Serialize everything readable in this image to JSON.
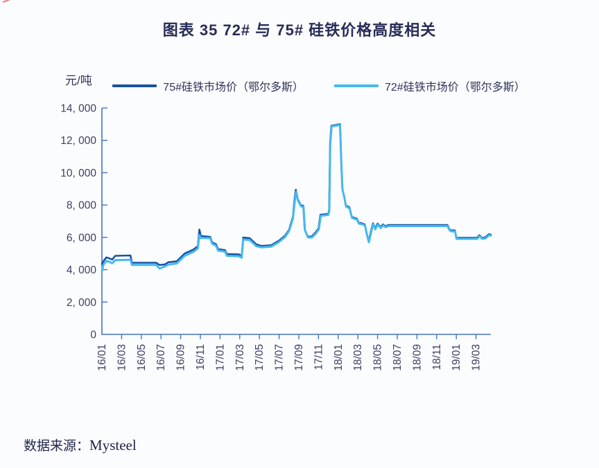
{
  "page": {
    "title": "图表 35  72# 与 75# 硅铁价格高度相关",
    "source_prefix": "数据来源：",
    "source_name": "Mysteel"
  },
  "chart_data": {
    "type": "line",
    "title": "图表 35  72# 与 75# 硅铁价格高度相关",
    "ylabel": "元/吨",
    "ylim": [
      0,
      14000
    ],
    "grid": false,
    "legend_position": "top",
    "axis_color": "#4472c4",
    "background_color": "#fbfcfe",
    "y_ticks": [
      0,
      2000,
      4000,
      6000,
      8000,
      10000,
      12000,
      14000
    ],
    "y_tick_labels": [
      "0",
      "2, 000",
      "4, 000",
      "6, 000",
      "8, 000",
      "10, 000",
      "12, 000",
      "14, 000"
    ],
    "x_tick_labels": [
      "16/01",
      "16/03",
      "16/05",
      "16/07",
      "16/09",
      "16/11",
      "17/01",
      "17/03",
      "17/05",
      "17/07",
      "17/09",
      "17/11",
      "18/01",
      "18/03",
      "18/05",
      "18/07",
      "18/09",
      "18/11",
      "19/01",
      "19/03"
    ],
    "x_unit": "months since 2016-01 (tick labels every 2 months)",
    "series": [
      {
        "name": "75#硅铁市场价（鄂尔多斯）",
        "color": "#1a52a2",
        "points": [
          [
            0,
            4350
          ],
          [
            0.15,
            4520
          ],
          [
            0.45,
            4760
          ],
          [
            0.75,
            4700
          ],
          [
            1.05,
            4630
          ],
          [
            1.35,
            4860
          ],
          [
            2.9,
            4880
          ],
          [
            3.05,
            4430
          ],
          [
            5.5,
            4430
          ],
          [
            5.85,
            4290
          ],
          [
            6.4,
            4330
          ],
          [
            6.75,
            4460
          ],
          [
            7.6,
            4520
          ],
          [
            8.4,
            5000
          ],
          [
            9.3,
            5250
          ],
          [
            9.75,
            5460
          ],
          [
            9.9,
            6480
          ],
          [
            10.05,
            6090
          ],
          [
            11.0,
            6030
          ],
          [
            11.2,
            5690
          ],
          [
            11.6,
            5570
          ],
          [
            11.8,
            5270
          ],
          [
            12.5,
            5210
          ],
          [
            12.7,
            4970
          ],
          [
            13.9,
            4950
          ],
          [
            14.2,
            4850
          ],
          [
            14.35,
            5990
          ],
          [
            15.0,
            5950
          ],
          [
            15.7,
            5560
          ],
          [
            16.2,
            5470
          ],
          [
            17.2,
            5510
          ],
          [
            18.0,
            5800
          ],
          [
            18.6,
            6100
          ],
          [
            19.0,
            6450
          ],
          [
            19.4,
            7260
          ],
          [
            19.55,
            8260
          ],
          [
            19.7,
            8950
          ],
          [
            19.9,
            8350
          ],
          [
            20.1,
            8120
          ],
          [
            20.2,
            7990
          ],
          [
            20.45,
            7960
          ],
          [
            20.6,
            6500
          ],
          [
            20.9,
            6060
          ],
          [
            21.3,
            6050
          ],
          [
            21.7,
            6300
          ],
          [
            22.0,
            6550
          ],
          [
            22.2,
            7400
          ],
          [
            23.0,
            7450
          ],
          [
            23.08,
            7700
          ],
          [
            23.18,
            11900
          ],
          [
            23.3,
            12900
          ],
          [
            24.2,
            13000
          ],
          [
            24.32,
            10500
          ],
          [
            24.42,
            9000
          ],
          [
            24.6,
            8560
          ],
          [
            24.78,
            7960
          ],
          [
            25.15,
            7860
          ],
          [
            25.38,
            7260
          ],
          [
            25.9,
            7160
          ],
          [
            26.1,
            6900
          ],
          [
            26.35,
            6880
          ],
          [
            26.7,
            6800
          ],
          [
            26.9,
            6220
          ],
          [
            27.1,
            5760
          ],
          [
            27.35,
            6450
          ],
          [
            27.55,
            6870
          ],
          [
            27.75,
            6560
          ],
          [
            28.0,
            6850
          ],
          [
            28.3,
            6640
          ],
          [
            28.55,
            6800
          ],
          [
            28.8,
            6690
          ],
          [
            29.1,
            6760
          ],
          [
            35.1,
            6760
          ],
          [
            35.3,
            6500
          ],
          [
            35.45,
            6430
          ],
          [
            35.85,
            6430
          ],
          [
            36.0,
            5970
          ],
          [
            38.1,
            5970
          ],
          [
            38.35,
            6140
          ],
          [
            38.6,
            5970
          ],
          [
            38.95,
            6000
          ],
          [
            39.3,
            6190
          ],
          [
            39.5,
            6170
          ]
        ]
      },
      {
        "name": "72#硅铁市场价（鄂尔多斯）",
        "color": "#45b9ee",
        "points": [
          [
            0,
            3900
          ],
          [
            0.15,
            4310
          ],
          [
            0.45,
            4540
          ],
          [
            0.75,
            4490
          ],
          [
            1.05,
            4400
          ],
          [
            1.35,
            4590
          ],
          [
            2.9,
            4610
          ],
          [
            3.05,
            4300
          ],
          [
            5.5,
            4300
          ],
          [
            5.85,
            4070
          ],
          [
            6.4,
            4200
          ],
          [
            6.75,
            4310
          ],
          [
            7.6,
            4390
          ],
          [
            8.4,
            4860
          ],
          [
            9.3,
            5110
          ],
          [
            9.75,
            5320
          ],
          [
            9.9,
            6140
          ],
          [
            10.05,
            5970
          ],
          [
            11.0,
            5950
          ],
          [
            11.2,
            5610
          ],
          [
            11.6,
            5480
          ],
          [
            11.8,
            5180
          ],
          [
            12.5,
            5120
          ],
          [
            12.7,
            4860
          ],
          [
            13.9,
            4840
          ],
          [
            14.2,
            4740
          ],
          [
            14.35,
            5870
          ],
          [
            15.0,
            5840
          ],
          [
            15.7,
            5450
          ],
          [
            16.2,
            5380
          ],
          [
            17.2,
            5430
          ],
          [
            18.0,
            5720
          ],
          [
            18.6,
            6020
          ],
          [
            19.0,
            6380
          ],
          [
            19.4,
            7160
          ],
          [
            19.57,
            8140
          ],
          [
            19.73,
            8820
          ],
          [
            19.93,
            8260
          ],
          [
            20.13,
            8040
          ],
          [
            20.23,
            7910
          ],
          [
            20.48,
            7880
          ],
          [
            20.63,
            6440
          ],
          [
            20.93,
            6000
          ],
          [
            21.33,
            5990
          ],
          [
            21.73,
            6240
          ],
          [
            22.03,
            6490
          ],
          [
            22.23,
            7330
          ],
          [
            23.0,
            7390
          ],
          [
            23.1,
            7630
          ],
          [
            23.2,
            11800
          ],
          [
            23.33,
            12860
          ],
          [
            24.18,
            12950
          ],
          [
            24.33,
            10400
          ],
          [
            24.44,
            8940
          ],
          [
            24.62,
            8500
          ],
          [
            24.8,
            7900
          ],
          [
            25.15,
            7800
          ],
          [
            25.4,
            7200
          ],
          [
            25.9,
            7100
          ],
          [
            26.12,
            6840
          ],
          [
            26.37,
            6820
          ],
          [
            26.72,
            6740
          ],
          [
            26.92,
            6160
          ],
          [
            27.12,
            5700
          ],
          [
            27.37,
            6390
          ],
          [
            27.57,
            6810
          ],
          [
            27.77,
            6500
          ],
          [
            28.02,
            6790
          ],
          [
            28.32,
            6580
          ],
          [
            28.57,
            6740
          ],
          [
            28.82,
            6630
          ],
          [
            29.12,
            6700
          ],
          [
            35.1,
            6700
          ],
          [
            35.32,
            6440
          ],
          [
            35.47,
            6370
          ],
          [
            35.87,
            6370
          ],
          [
            36.02,
            5910
          ],
          [
            38.12,
            5910
          ],
          [
            38.37,
            6080
          ],
          [
            38.62,
            5910
          ],
          [
            38.97,
            5940
          ],
          [
            39.32,
            6130
          ],
          [
            39.5,
            6110
          ]
        ]
      }
    ]
  }
}
